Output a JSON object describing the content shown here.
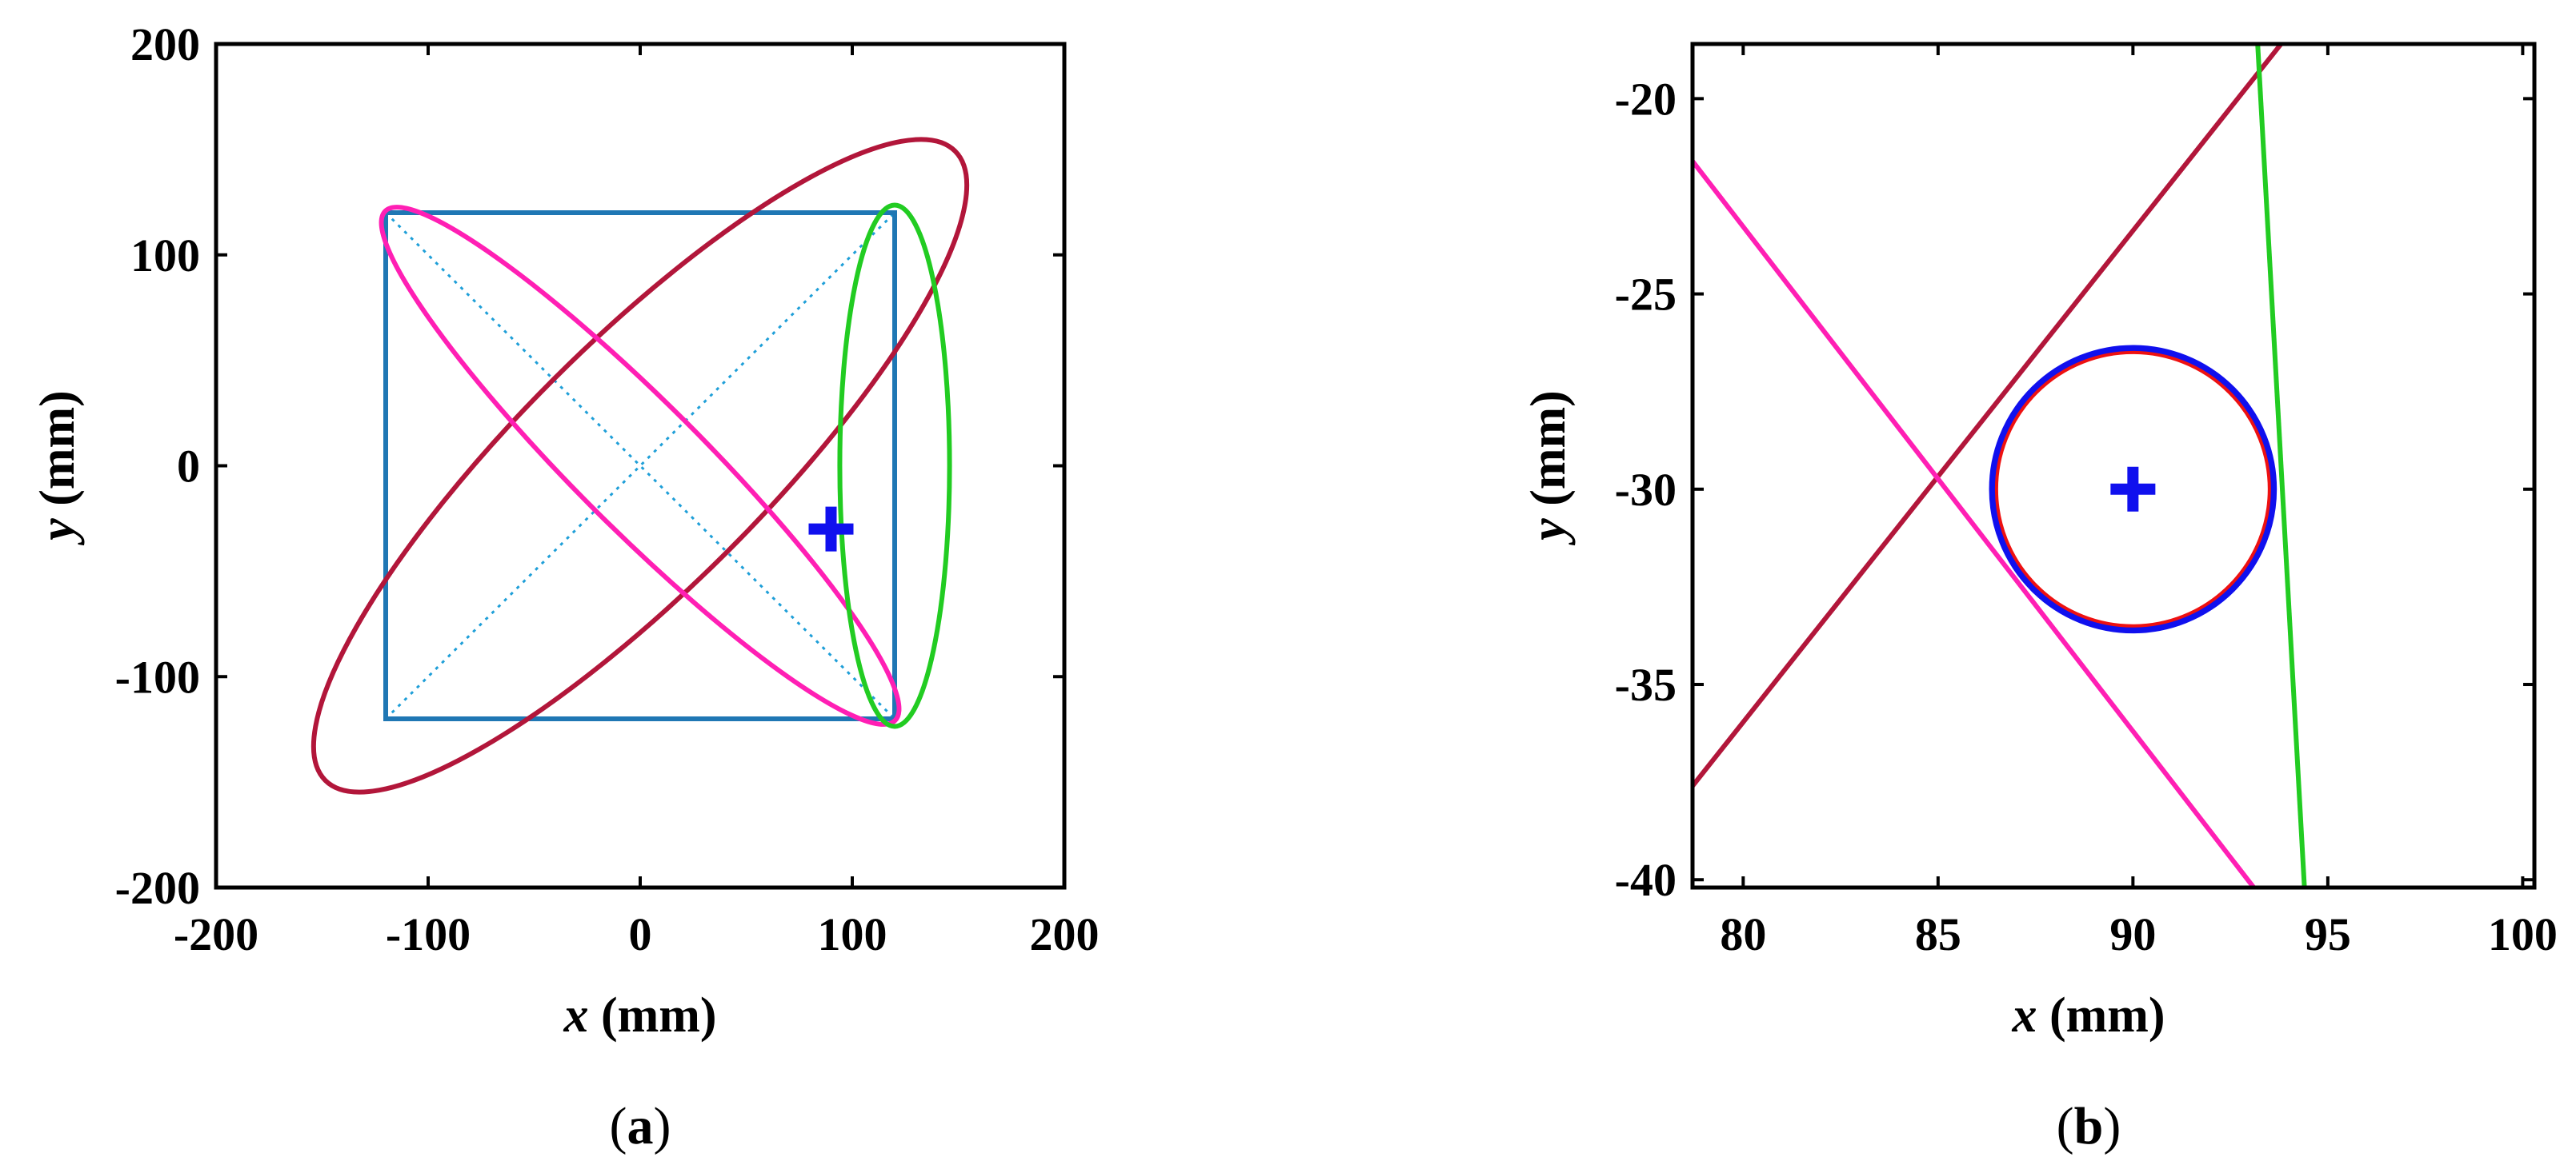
{
  "colors": {
    "square": "#1f77b4",
    "diagonals": "#1f9fd8",
    "maroon_ellipse": "#b2163a",
    "magenta_ellipse": "#ff1fb4",
    "green_ellipse": "#22cc22",
    "marker": "#1010ee",
    "circle_blue": "#1010ee",
    "circle_red": "#ee1111"
  },
  "chart_data": [
    {
      "type": "line",
      "caption_open": "(",
      "caption_letter": "a",
      "caption_close": ")",
      "xlabel_var": "x",
      "xlabel_unit": " (mm)",
      "ylabel_var": "y",
      "ylabel_unit": " (mm)",
      "xlim": [
        -200,
        200
      ],
      "ylim": [
        -200,
        200
      ],
      "xticks": [
        "-200",
        "-100",
        "0",
        "100",
        "200"
      ],
      "yticks": [
        "200",
        "100",
        "0",
        "-100",
        "-200"
      ],
      "xtick_values": [
        -200,
        -100,
        0,
        100,
        200
      ],
      "ytick_values": [
        200,
        100,
        0,
        -100,
        -200
      ],
      "grid": false,
      "square": {
        "x": [
          -120,
          120,
          120,
          -120,
          -120
        ],
        "y": [
          120,
          120,
          -120,
          -120,
          120
        ]
      },
      "diagonals": [
        {
          "x": [
            -120,
            120
          ],
          "y": [
            120,
            -120
          ]
        },
        {
          "x": [
            -120,
            120
          ],
          "y": [
            -120,
            120
          ]
        }
      ],
      "ellipses": [
        {
          "name": "maroon",
          "cx": 0,
          "cy": 0,
          "a": 210,
          "b": 58,
          "angle_deg": 45
        },
        {
          "name": "magenta",
          "cx": 0,
          "cy": 0,
          "a": 170,
          "b": 30,
          "angle_deg": -45
        },
        {
          "name": "green",
          "cx": 120,
          "cy": 0,
          "a": 123,
          "b": 26,
          "angle_deg": 90
        }
      ],
      "marker": {
        "x": 90,
        "y": -30,
        "symbol": "+"
      }
    },
    {
      "type": "line",
      "caption_open": "(",
      "caption_letter": "b",
      "caption_close": ")",
      "xlabel_var": "x",
      "xlabel_unit": " (mm)",
      "ylabel_var": "y",
      "ylabel_unit": " (mm)",
      "xlim": [
        78.7,
        100.3
      ],
      "ylim": [
        -40.2,
        -18.6
      ],
      "xticks": [
        "80",
        "85",
        "90",
        "95",
        "100"
      ],
      "yticks": [
        "-20",
        "-25",
        "-30",
        "-35",
        "-40"
      ],
      "xtick_values": [
        80,
        85,
        90,
        95,
        100
      ],
      "ytick_values": [
        -20,
        -25,
        -30,
        -35,
        -40
      ],
      "grid": false,
      "lines": [
        {
          "name": "maroon",
          "x": [
            78.7,
            93.8
          ],
          "y": [
            -37.6,
            -18.6
          ]
        },
        {
          "name": "magenta",
          "x": [
            78.7,
            93.1
          ],
          "y": [
            -21.6,
            -40.2
          ]
        },
        {
          "name": "green",
          "x": [
            93.2,
            94.4
          ],
          "y": [
            -18.6,
            -40.2
          ]
        }
      ],
      "circles": [
        {
          "name": "blue",
          "cx": 90,
          "cy": -30,
          "r": 3.6
        },
        {
          "name": "red",
          "cx": 90,
          "cy": -30,
          "r": 3.5
        }
      ],
      "marker": {
        "x": 90,
        "y": -30,
        "symbol": "+"
      }
    }
  ]
}
